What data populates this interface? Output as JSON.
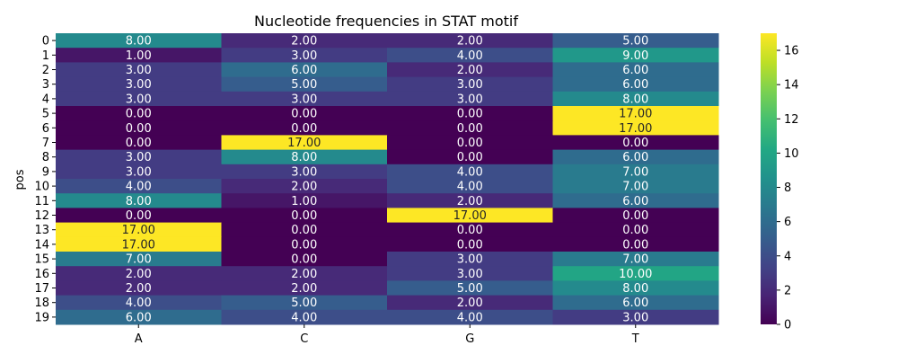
{
  "chart_data": {
    "type": "heatmap",
    "title": "Nucleotide frequencies in STAT motif",
    "xlabel": "",
    "ylabel": "pos",
    "columns": [
      "A",
      "C",
      "G",
      "T"
    ],
    "rows": [
      "0",
      "1",
      "2",
      "3",
      "4",
      "5",
      "6",
      "7",
      "8",
      "9",
      "10",
      "11",
      "12",
      "13",
      "14",
      "15",
      "16",
      "17",
      "18",
      "19"
    ],
    "values": [
      [
        8,
        2,
        2,
        5
      ],
      [
        1,
        3,
        4,
        9
      ],
      [
        3,
        6,
        2,
        6
      ],
      [
        3,
        5,
        3,
        6
      ],
      [
        3,
        3,
        3,
        8
      ],
      [
        0,
        0,
        0,
        17
      ],
      [
        0,
        0,
        0,
        17
      ],
      [
        0,
        17,
        0,
        0
      ],
      [
        3,
        8,
        0,
        6
      ],
      [
        3,
        3,
        4,
        7
      ],
      [
        4,
        2,
        4,
        7
      ],
      [
        8,
        1,
        2,
        6
      ],
      [
        0,
        0,
        17,
        0
      ],
      [
        17,
        0,
        0,
        0
      ],
      [
        17,
        0,
        0,
        0
      ],
      [
        7,
        0,
        3,
        7
      ],
      [
        2,
        2,
        3,
        10
      ],
      [
        2,
        2,
        5,
        8
      ],
      [
        4,
        5,
        2,
        6
      ],
      [
        6,
        4,
        4,
        3
      ]
    ],
    "annotation_format": "0.00",
    "colormap": "viridis",
    "vmin": 0,
    "vmax": 17,
    "colorbar": {
      "ticks": [
        0,
        2,
        4,
        6,
        8,
        10,
        12,
        14,
        16
      ],
      "tick_labels": [
        "0",
        "2",
        "4",
        "6",
        "8",
        "10",
        "12",
        "14",
        "16"
      ],
      "placement": "right"
    },
    "grid": false
  }
}
